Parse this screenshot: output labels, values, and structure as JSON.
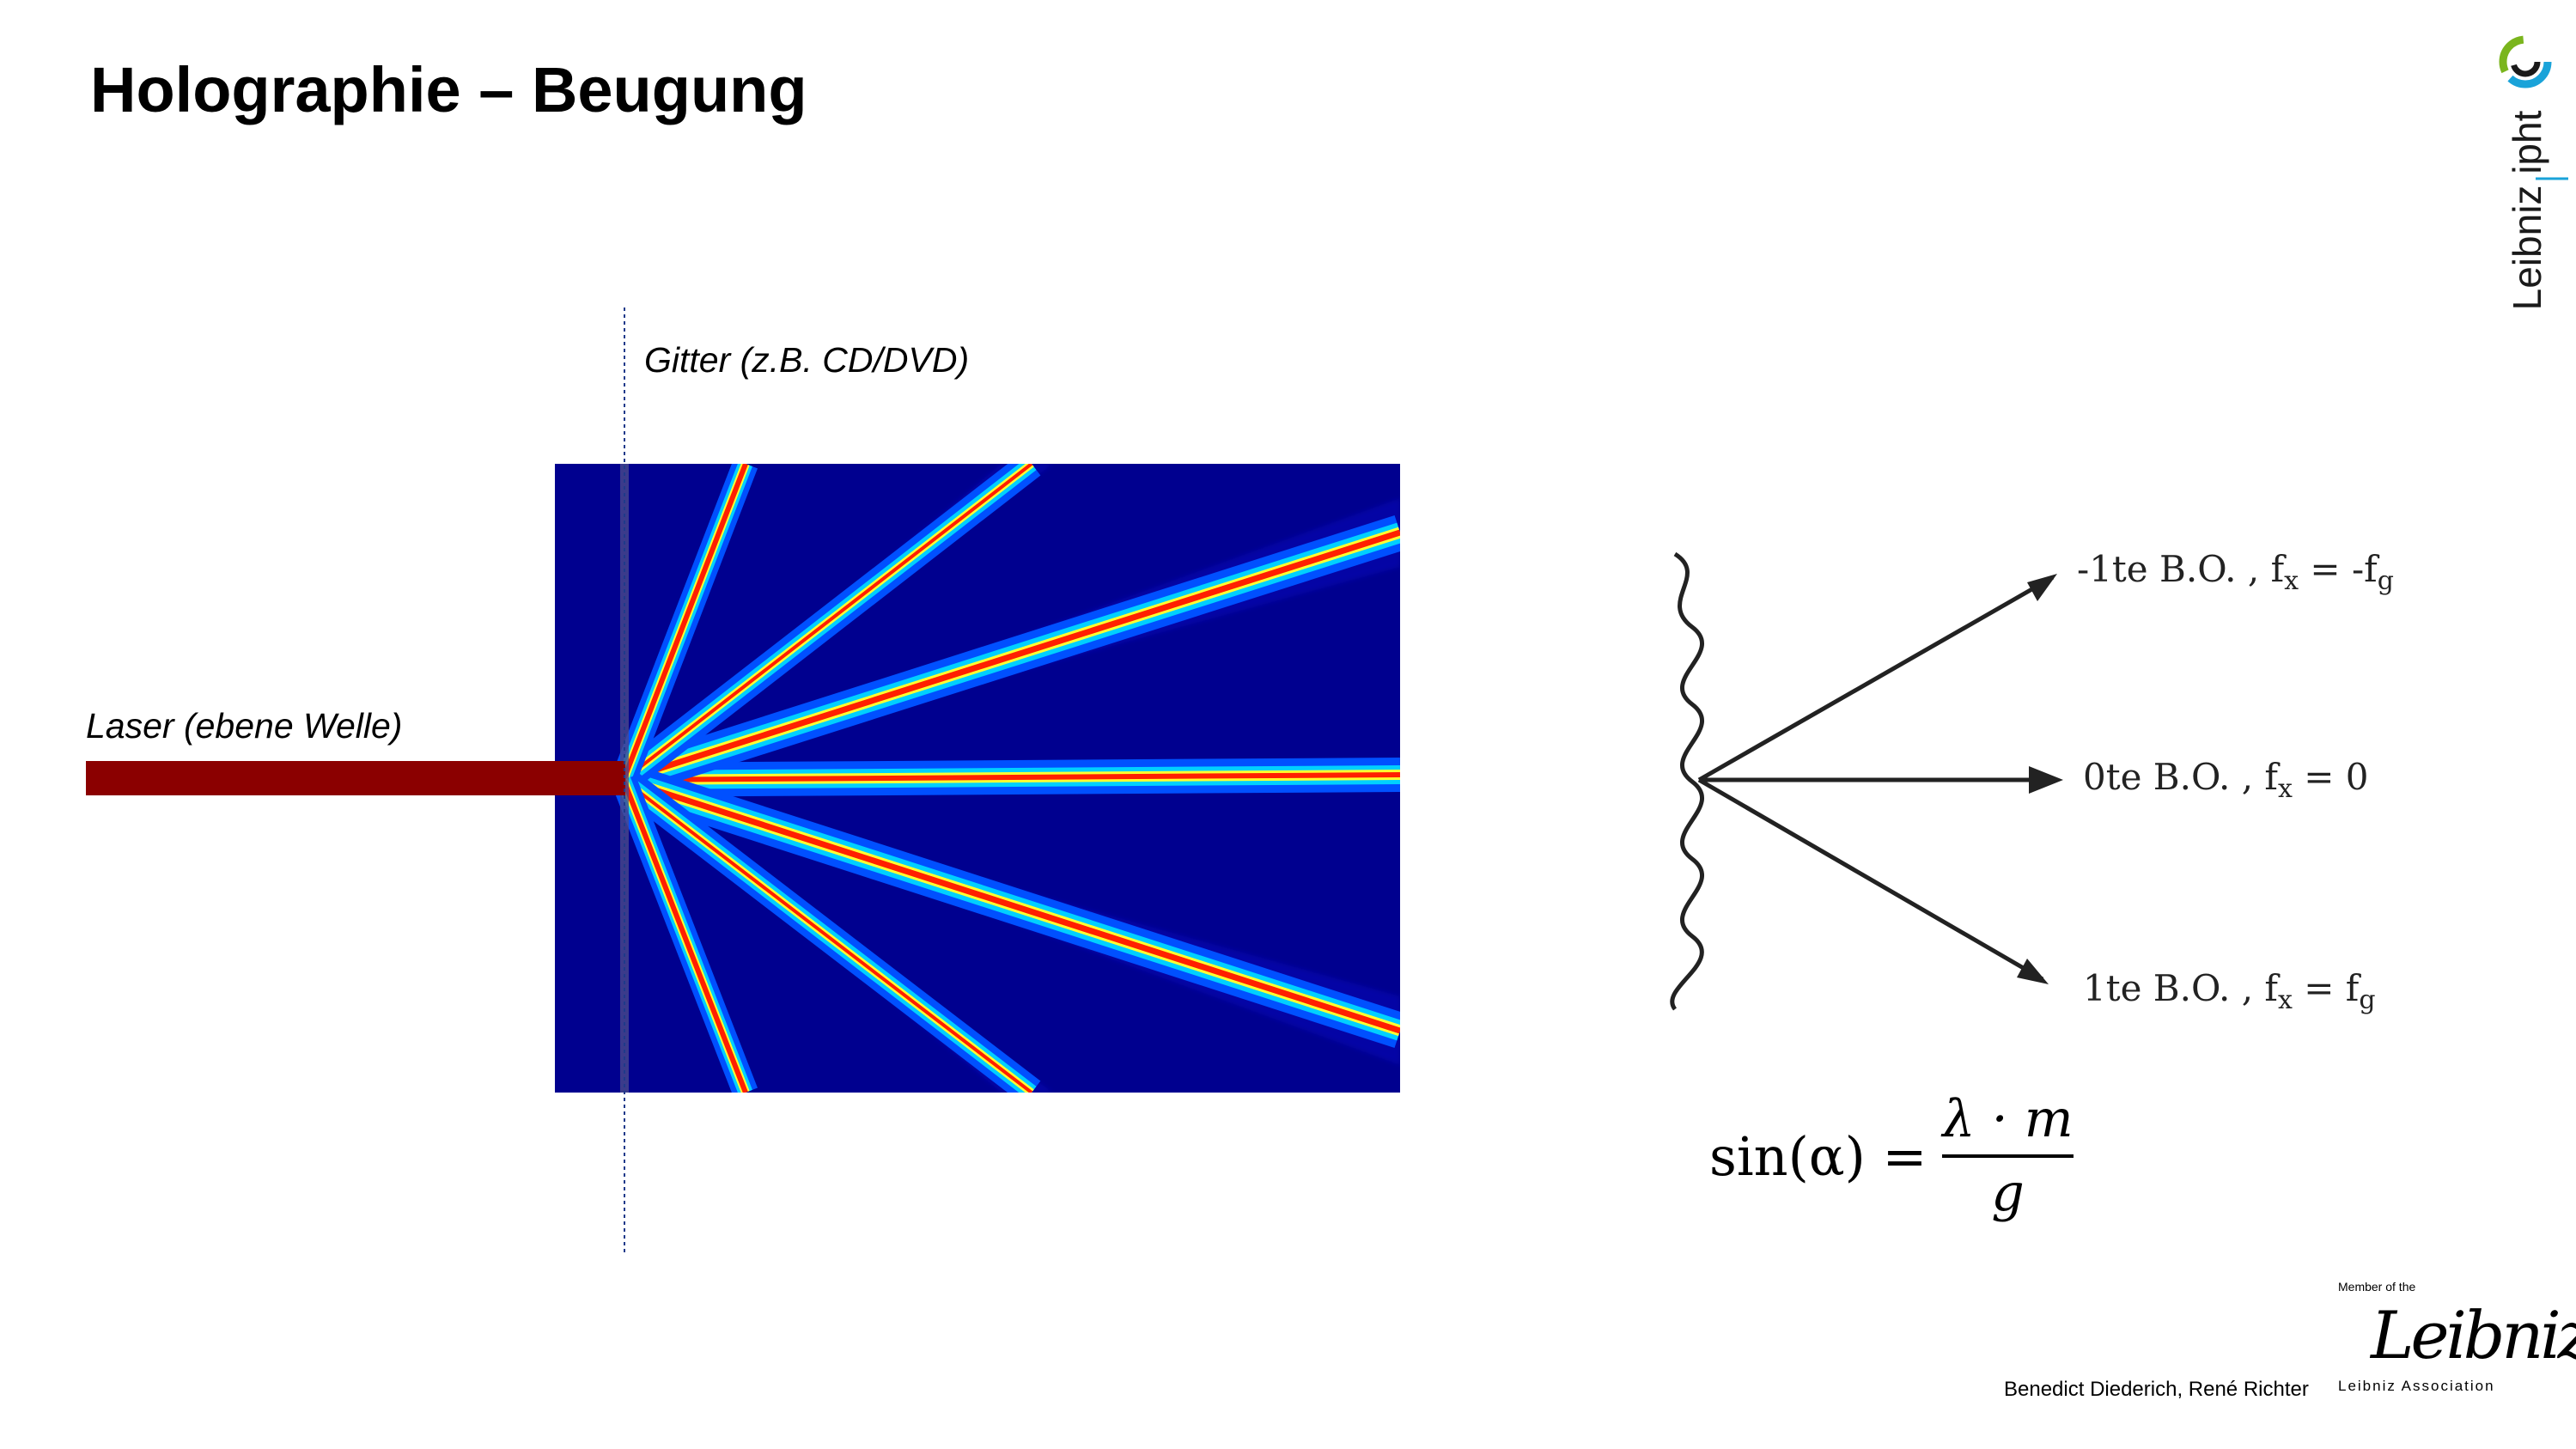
{
  "slide": {
    "title": "Holographie – Beugung"
  },
  "diagram": {
    "grating_label": "Gitter (z.B. CD/DVD)",
    "laser_label": "Laser (ebene Welle)",
    "colors": {
      "laser": "#8b0000",
      "field_background": "#00008f",
      "grating_line": "#1f3a8a"
    }
  },
  "orders": [
    {
      "prefix": "-1te B.O. , f",
      "sub": "x",
      "eq": " = -f",
      "sub2": "g"
    },
    {
      "prefix": "0te B.O. , f",
      "sub": "x",
      "eq": " = 0",
      "sub2": ""
    },
    {
      "prefix": "1te B.O. , f",
      "sub": "x",
      "eq": " = f",
      "sub2": "g"
    }
  ],
  "formula": {
    "lhs": "sin(α) =",
    "numerator": "λ · m",
    "denominator": "g"
  },
  "branding": {
    "logo_text": "Leibniz ipht",
    "member_text": "Member of the",
    "signature_text": "Leibniz",
    "association_text": "Leibniz Association",
    "colors": {
      "accent_blue": "#1aa3d9",
      "accent_green": "#7ab51d",
      "dark": "#1a1a1a"
    }
  },
  "footer": {
    "authors": "Benedict Diederich, René Richter"
  }
}
